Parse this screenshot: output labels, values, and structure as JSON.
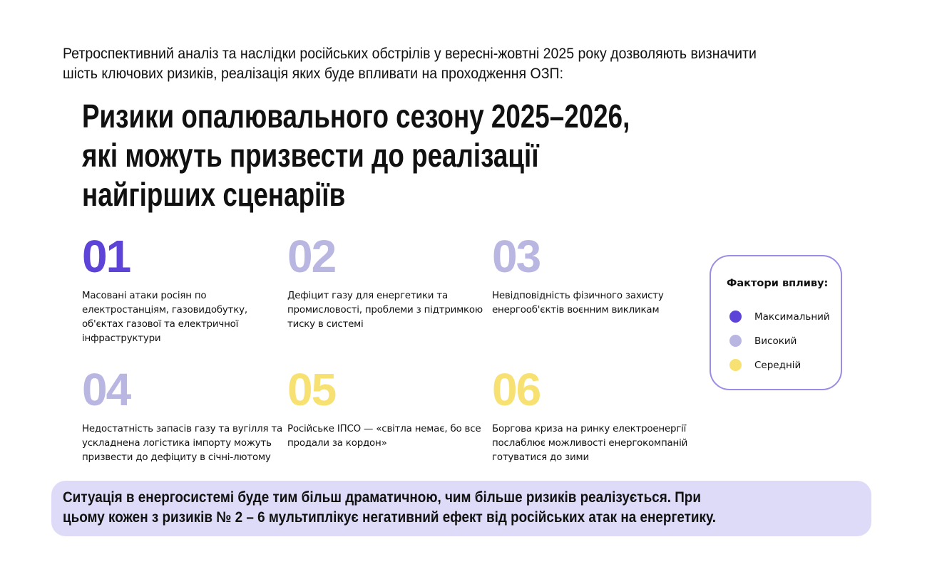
{
  "intro": {
    "line1": "Ретроспективний аналіз та наслідки російських обстрілів у вересні-жовтні 2025 року дозволяють визначити",
    "line2": "шість ключових ризиків, реалізація яких буде впливати на проходження ОЗП:"
  },
  "title": {
    "line1": "Ризики опалювального сезону 2025–2026,",
    "line2": "які можуть призвести до реалізації",
    "line3": "найгірших сценаріїв"
  },
  "colors": {
    "maximal": "#5d43d8",
    "high": "#bab6e2",
    "medium": "#f7e172",
    "border": "#9b8ce6",
    "callout_bg": "#dedbf8"
  },
  "risks": [
    {
      "number": "01",
      "level": "maximal",
      "text": "Масовані атаки росіян по електростанціям, газовидобутку, об'єктах газової та електричної інфраструктури"
    },
    {
      "number": "02",
      "level": "high",
      "text": "Дефіцит газу для енергетики та промисловості, проблеми з підтримкою тиску в системі"
    },
    {
      "number": "03",
      "level": "high",
      "text": "Невідповідність фізичного захисту енергооб'єктів воєнним викликам"
    },
    {
      "number": "04",
      "level": "high",
      "text": "Недостатність запасів газу та вугілля та ускладнена логістика імпорту можуть призвести до дефіциту в січні-лютому"
    },
    {
      "number": "05",
      "level": "medium",
      "text": "Російське ІПСО — «світла немає, бо все продали за кордон»"
    },
    {
      "number": "06",
      "level": "medium",
      "text": "Боргова криза на ринку електроенергії послаблює можливості енергокомпаній готуватися до зими"
    }
  ],
  "legend": {
    "title": "Фактори впливу:",
    "items": [
      {
        "label": "Максимальний",
        "level": "maximal"
      },
      {
        "label": "Високий",
        "level": "high"
      },
      {
        "label": "Середній",
        "level": "medium"
      }
    ]
  },
  "callout": {
    "line1": "Ситуація в енергосистемі буде тим більш драматичною, чим більше ризиків реалізується. При",
    "line2": "цьому кожен з ризиків № 2 – 6 мультиплікує негативний ефект від російських атак на енергетику."
  }
}
